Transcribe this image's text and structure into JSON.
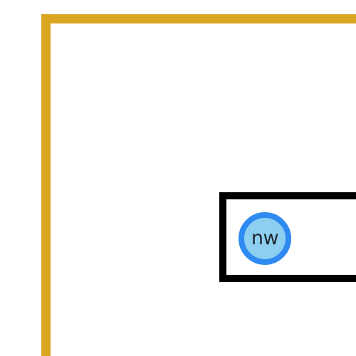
{
  "colors": {
    "outer_frame": "#DAA520",
    "target_box_border": "#000000",
    "anchor_ring": "#2F8BF2",
    "anchor_fill": "#8CCFF0",
    "anchor_text": "#1f2730"
  },
  "anchor": {
    "label": "nw"
  }
}
